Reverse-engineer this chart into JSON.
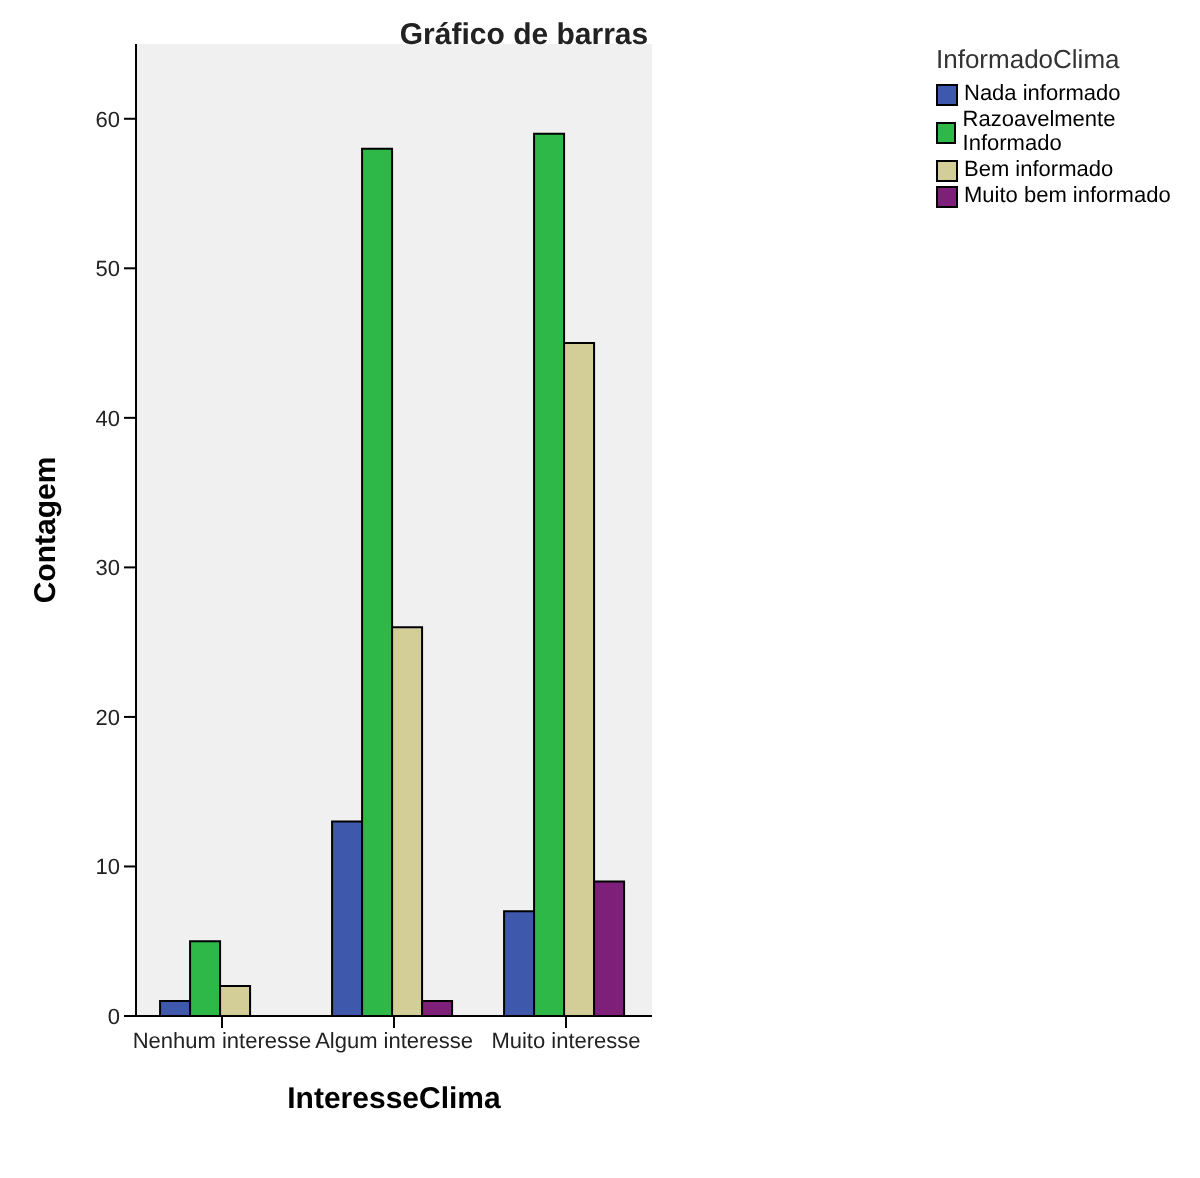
{
  "chart_data": {
    "type": "bar",
    "title": "Gráfico de barras",
    "xlabel": "InteresseClima",
    "ylabel": "Contagem",
    "legend_title": "InformadoClima",
    "categories": [
      "Nenhum interesse",
      "Algum interesse",
      "Muito interesse"
    ],
    "series": [
      {
        "name": "Nada informado",
        "color": "#3e58ac",
        "values": [
          1,
          13,
          7
        ]
      },
      {
        "name": "Razoavelmente Informado",
        "color": "#2eb848",
        "values": [
          5,
          58,
          59
        ]
      },
      {
        "name": "Bem informado",
        "color": "#d3ce97",
        "values": [
          2,
          26,
          45
        ]
      },
      {
        "name": "Muito bem informado",
        "color": "#7e1f7a",
        "values": [
          0,
          1,
          9
        ]
      }
    ],
    "ylim": [
      0,
      65
    ],
    "yticks": [
      0,
      10,
      20,
      30,
      40,
      50,
      60
    ],
    "grid": false,
    "legend": "top right"
  }
}
